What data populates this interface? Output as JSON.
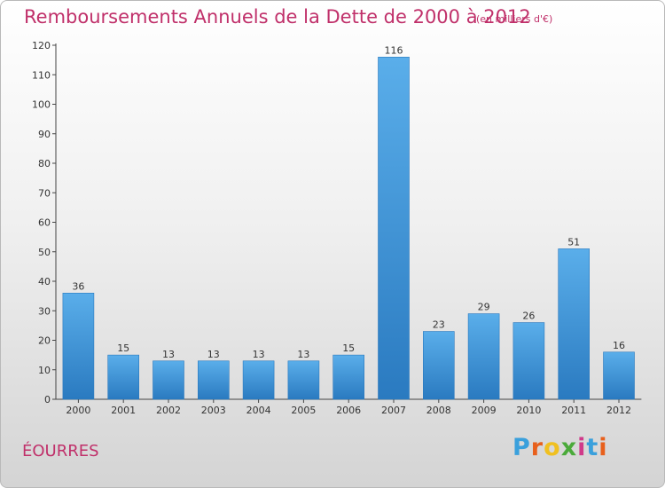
{
  "header": {
    "title": "Remboursements Annuels de la Dette de 2000 à 2012",
    "subtitle": "(en milliers d'€)"
  },
  "commune": "ÉOURRES",
  "logo": {
    "text": "Proxiti",
    "letter_colors": [
      "#3aa0dc",
      "#e8601c",
      "#f0c020",
      "#4aaa3a",
      "#d03a8a",
      "#3aa0dc",
      "#e8601c"
    ]
  },
  "colors": {
    "title": "#c0306a",
    "bar_light": "#5aaeea",
    "bar_dark": "#2a7ac0"
  },
  "chart_data": {
    "type": "bar",
    "title": "Remboursements Annuels de la Dette de 2000 à 2012",
    "subtitle": "(en milliers d'€)",
    "categories": [
      "2000",
      "2001",
      "2002",
      "2003",
      "2004",
      "2005",
      "2006",
      "2007",
      "2008",
      "2009",
      "2010",
      "2011",
      "2012"
    ],
    "values": [
      36,
      15,
      13,
      13,
      13,
      13,
      15,
      116,
      23,
      29,
      26,
      51,
      16
    ],
    "ylim": [
      0,
      120
    ],
    "yticks": [
      0,
      10,
      20,
      30,
      40,
      50,
      60,
      70,
      80,
      90,
      100,
      110,
      120
    ],
    "grid": false,
    "legend": "none"
  }
}
